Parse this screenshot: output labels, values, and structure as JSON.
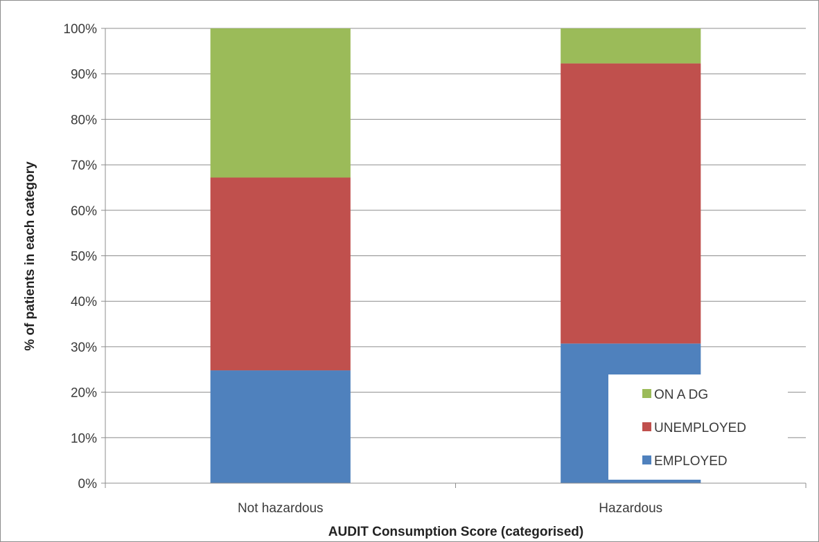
{
  "chart_data": {
    "type": "bar",
    "stacked": true,
    "percent_stacked": true,
    "categories": [
      "Not hazardous",
      "Hazardous"
    ],
    "series": [
      {
        "name": "EMPLOYED",
        "values": [
          24.8,
          30.7
        ],
        "color": "#4F81BD"
      },
      {
        "name": "UNEMPLOYED",
        "values": [
          42.4,
          61.6
        ],
        "color": "#C0504D"
      },
      {
        "name": "ON A DG",
        "values": [
          32.8,
          7.7
        ],
        "color": "#9BBB59"
      }
    ],
    "title": "",
    "xlabel": "AUDIT Consumption Score (categorised)",
    "ylabel": "% of patients in each category",
    "ylim": [
      0,
      100
    ],
    "yticks": [
      "0%",
      "10%",
      "20%",
      "30%",
      "40%",
      "50%",
      "60%",
      "70%",
      "80%",
      "90%",
      "100%"
    ],
    "grid": true,
    "legend": {
      "position": "bottom-right",
      "order": [
        "ON A DG",
        "UNEMPLOYED",
        "EMPLOYED"
      ]
    }
  }
}
